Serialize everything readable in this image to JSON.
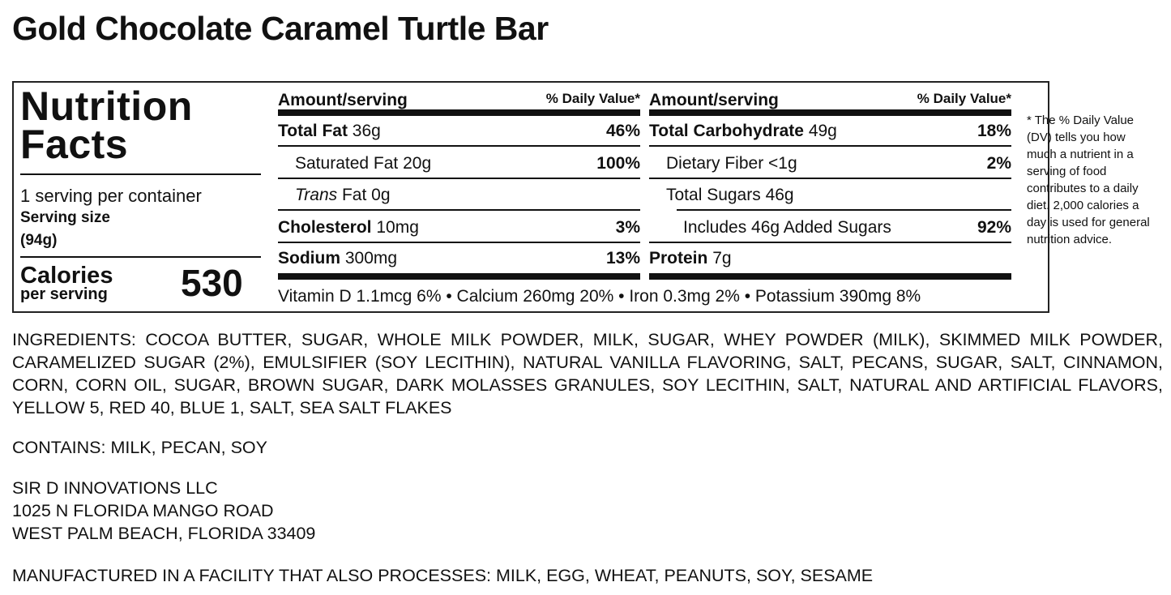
{
  "title": "Gold Chocolate Caramel Turtle Bar",
  "label": {
    "heading": "Nutrition Facts",
    "servings": "1 serving per container",
    "serving_size_label": "Serving size",
    "serving_size": "(94g)",
    "calories_label": "Calories",
    "calories_sub": "per serving",
    "calories": "530",
    "col_header_left": "Amount/serving",
    "col_header_right": "% Daily Value*",
    "left_rows": [
      {
        "name": "Total Fat",
        "amount": "36g",
        "dv": "46%"
      },
      {
        "name": "Saturated Fat",
        "amount": "20g",
        "dv": "100%"
      },
      {
        "name": "Trans",
        "name2": "Fat",
        "amount": "0g",
        "dv": ""
      },
      {
        "name": "Cholesterol",
        "amount": "10mg",
        "dv": "3%"
      },
      {
        "name": "Sodium",
        "amount": "300mg",
        "dv": "13%"
      }
    ],
    "right_rows": [
      {
        "name": "Total Carbohydrate",
        "amount": "49g",
        "dv": "18%"
      },
      {
        "name": "Dietary Fiber",
        "amount": "<1g",
        "dv": "2%"
      },
      {
        "name": "Total Sugars",
        "amount": "46g",
        "dv": ""
      },
      {
        "name": "Includes 46g Added Sugars",
        "amount": "",
        "dv": "92%"
      },
      {
        "name": "Protein",
        "amount": "7g",
        "dv": ""
      }
    ],
    "vitamins": "Vitamin D 1.1mcg 6% • Calcium 260mg 20% • Iron 0.3mg 2% • Potassium 390mg 8%",
    "footnote": "* The % Daily Value (DV) tells you how much a nutrient in a serving of food contributes to a daily diet. 2,000 calories a day is used for general nutrition advice."
  },
  "ingredients": "INGREDIENTS: COCOA BUTTER, SUGAR, WHOLE MILK POWDER, MILK, SUGAR, WHEY POWDER (MILK), SKIMMED MILK POWDER, CARAMELIZED SUGAR (2%), EMULSIFIER (SOY LECITHIN), NATURAL VANILLA FLAVORING, SALT, PECANS, SUGAR, SALT, CINNAMON, CORN, CORN OIL, SUGAR, BROWN SUGAR, DARK MOLASSES GRANULES, SOY LECITHIN, SALT, NATURAL AND ARTIFICIAL FLAVORS, YELLOW 5, RED 40, BLUE 1, SALT, SEA SALT FLAKES",
  "contains": "CONTAINS: MILK, PECAN, SOY",
  "company": [
    "SIR D INNOVATIONS LLC",
    "1025 N FLORIDA MANGO ROAD",
    "WEST PALM BEACH, FLORIDA 33409"
  ],
  "facility": "MANUFACTURED IN A FACILITY THAT ALSO PROCESSES: MILK, EGG, WHEAT, PEANUTS, SOY, SESAME"
}
